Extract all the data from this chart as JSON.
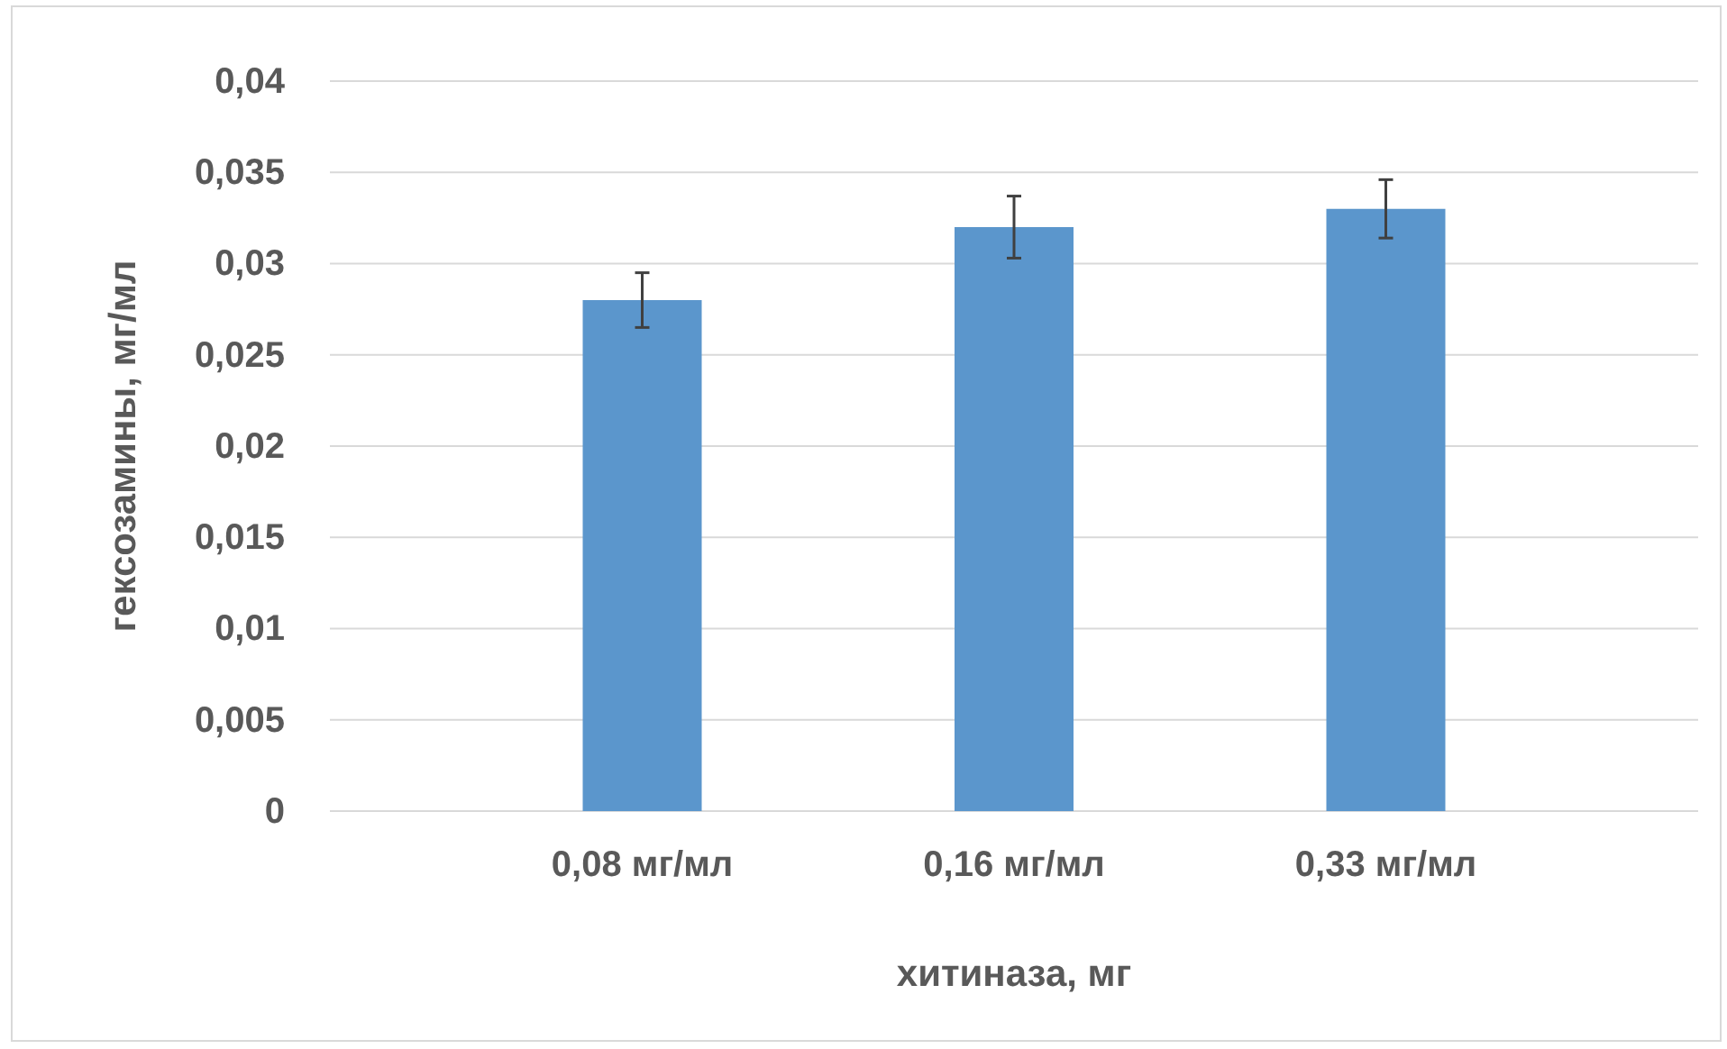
{
  "chart_data": {
    "type": "bar",
    "xlabel": "хитиназа, мг",
    "ylabel": "гексозамины, мг/мл",
    "categories": [
      "0,08 мг/мл",
      "0,16 мг/мл",
      "0,33 мг/мл"
    ],
    "values": [
      0.028,
      0.032,
      0.033
    ],
    "errors": [
      0.0015,
      0.0017,
      0.0016
    ],
    "color": "#5b96cc",
    "ylim": [
      0,
      0.04
    ],
    "yticks": [
      {
        "value": 0,
        "label": "0"
      },
      {
        "value": 0.005,
        "label": "0,005"
      },
      {
        "value": 0.01,
        "label": "0,01"
      },
      {
        "value": 0.015,
        "label": "0,015"
      },
      {
        "value": 0.02,
        "label": "0,02"
      },
      {
        "value": 0.025,
        "label": "0,025"
      },
      {
        "value": 0.03,
        "label": "0,03"
      },
      {
        "value": 0.035,
        "label": "0,035"
      },
      {
        "value": 0.04,
        "label": "0,04"
      }
    ],
    "grid": "y"
  }
}
